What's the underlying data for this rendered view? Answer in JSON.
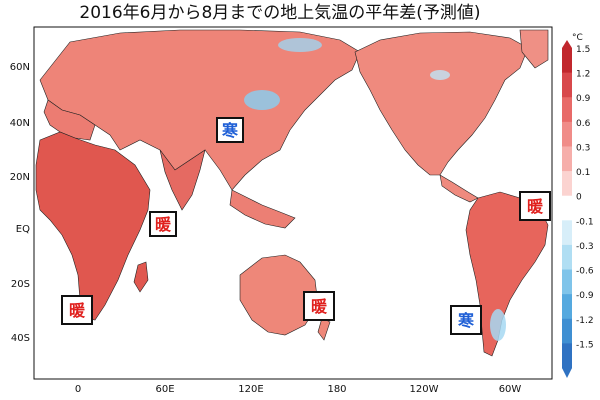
{
  "title": "2016年6月から8月までの地上気温の平年差(予測値)",
  "y_ticks": [
    "60N",
    "40N",
    "20N",
    "EQ",
    "20S",
    "40S"
  ],
  "x_ticks": [
    "0",
    "60E",
    "120E",
    "180",
    "120W",
    "60W"
  ],
  "legend": {
    "unit": "°C",
    "labels": [
      "1.5",
      "1.2",
      "0.9",
      "0.6",
      "0.3",
      "0.1",
      "0",
      "-0.1",
      "-0.3",
      "-0.6",
      "-0.9",
      "-1.2",
      "-1.5"
    ],
    "colors": [
      "#c1272d",
      "#d8484b",
      "#e86a68",
      "#f08c88",
      "#f6aeaa",
      "#fbd3d0",
      "#ffffff",
      "#d7eef9",
      "#b0def3",
      "#7fc4ea",
      "#55a9df",
      "#3f8fd2",
      "#2f72c2"
    ]
  },
  "annotations": [
    {
      "text": "寒",
      "color": "#1f5fd6"
    },
    {
      "text": "暖",
      "color": "#e0201d"
    },
    {
      "text": "暖",
      "color": "#e0201d"
    },
    {
      "text": "暖",
      "color": "#e0201d"
    },
    {
      "text": "暖",
      "color": "#e0201d"
    },
    {
      "text": "寒",
      "color": "#1f5fd6"
    }
  ]
}
